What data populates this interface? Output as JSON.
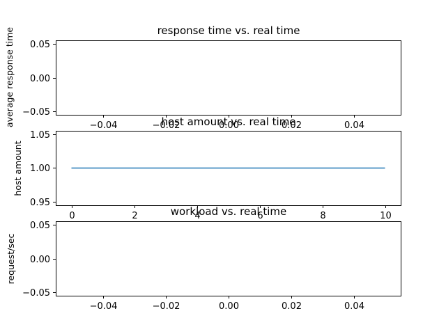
{
  "chart_data": [
    {
      "type": "line",
      "title": "response time vs. real time",
      "xlabel": "",
      "ylabel": "average response time",
      "xlim": [
        -0.055,
        0.055
      ],
      "ylim": [
        -0.055,
        0.055
      ],
      "xticks": [
        -0.04,
        -0.02,
        0.0,
        0.02,
        0.04
      ],
      "xtick_labels": [
        "−0.04",
        "−0.02",
        "0.00",
        "0.02",
        "0.04"
      ],
      "yticks": [
        -0.05,
        0.0,
        0.05
      ],
      "ytick_labels": [
        "−0.05",
        "0.00",
        "0.05"
      ],
      "series": [
        {
          "x": [],
          "y": []
        }
      ],
      "grid": false
    },
    {
      "type": "line",
      "title": "host amount vs. real time",
      "xlabel": "",
      "ylabel": "host amount",
      "xlim": [
        -0.5,
        10.5
      ],
      "ylim": [
        0.945,
        1.055
      ],
      "xticks": [
        0,
        2,
        4,
        6,
        8,
        10
      ],
      "xtick_labels": [
        "0",
        "2",
        "4",
        "6",
        "8",
        "10"
      ],
      "yticks": [
        0.95,
        1.0,
        1.05
      ],
      "ytick_labels": [
        "0.95",
        "1.00",
        "1.05"
      ],
      "series": [
        {
          "x": [
            0,
            10
          ],
          "y": [
            1.0,
            1.0
          ],
          "color": "#1f77b4"
        }
      ],
      "grid": false
    },
    {
      "type": "line",
      "title": "workload vs. real time",
      "xlabel": "",
      "ylabel": "request/sec",
      "xlim": [
        -0.055,
        0.055
      ],
      "ylim": [
        -0.055,
        0.055
      ],
      "xticks": [
        -0.04,
        -0.02,
        0.0,
        0.02,
        0.04
      ],
      "xtick_labels": [
        "−0.04",
        "−0.02",
        "0.00",
        "0.02",
        "0.04"
      ],
      "yticks": [
        -0.05,
        0.0,
        0.05
      ],
      "ytick_labels": [
        "−0.05",
        "0.00",
        "0.05"
      ],
      "series": [
        {
          "x": [],
          "y": []
        }
      ],
      "grid": false
    }
  ]
}
